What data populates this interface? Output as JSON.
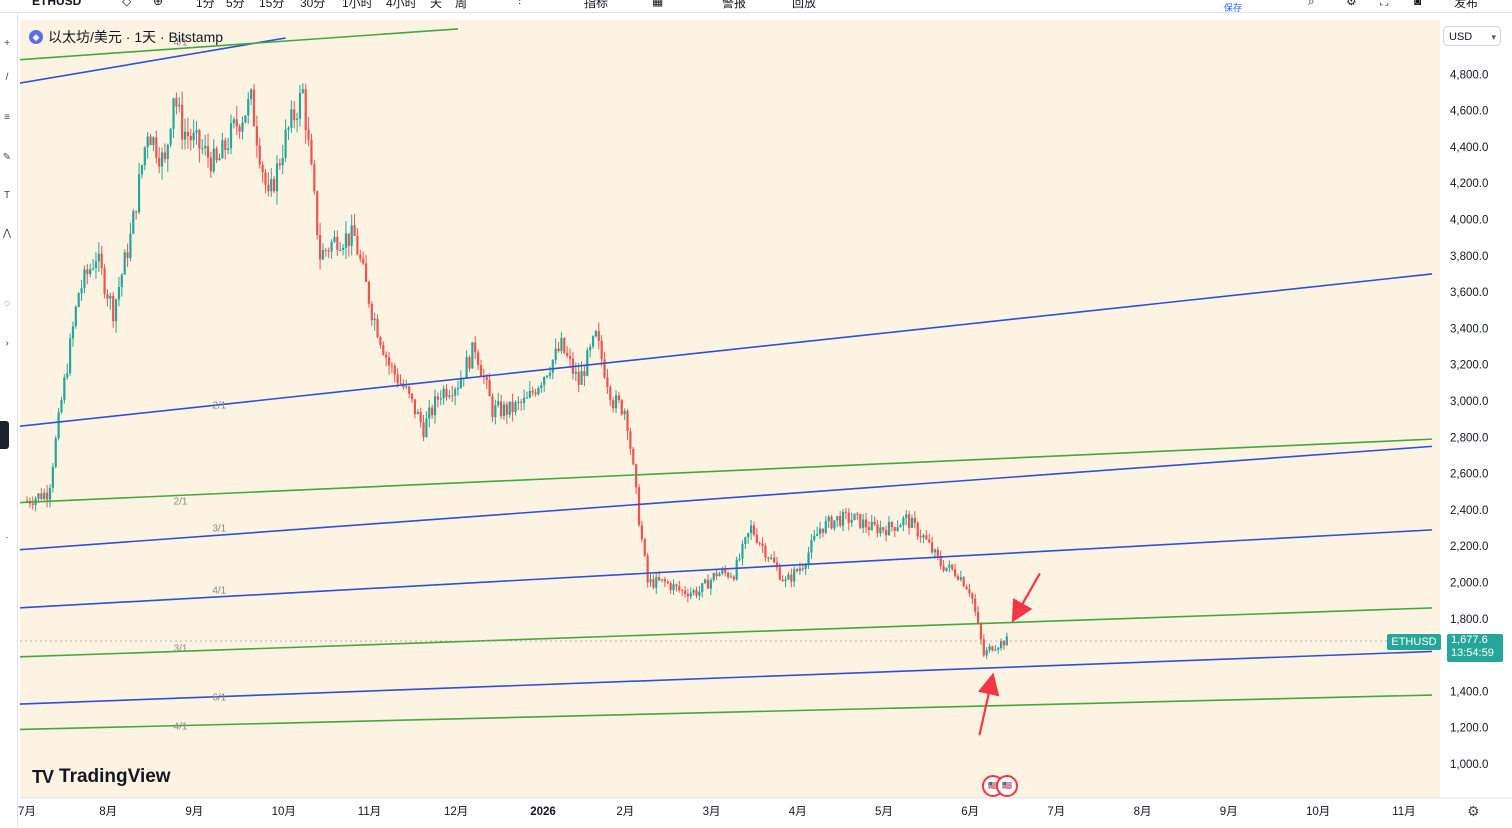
{
  "toolbar": {
    "symbol": "ETHUSD",
    "intervals": [
      "1分",
      "5分",
      "15分",
      "30分",
      "1小时",
      "4小时",
      "天",
      "周"
    ],
    "indicators": "指标",
    "alert": "警报",
    "replay": "回放",
    "save_sub": "保存",
    "publish": "发布"
  },
  "legend": {
    "title": "以太坊/美元 · 1天 · Bitstamp",
    "coin_icon": "ethereum-icon"
  },
  "currency_selector": {
    "label": "USD",
    "icon": "chevron-down-icon"
  },
  "price_tag": {
    "symbol": "ETHUSD",
    "price": "1,677.6",
    "countdown": "13:54:59"
  },
  "brand": {
    "name": "TradingView",
    "logo": "TV"
  },
  "events_icon": "🇺🇸",
  "colors": {
    "background": "#fdf3e3",
    "up": "#26a69a",
    "down": "#ef5350",
    "blue_line": "#2e4fd8",
    "green_line": "#43a83f",
    "arrow": "#f23645",
    "label": "#8a8a8a"
  },
  "chart_data": {
    "type": "candlestick",
    "title": "以太坊/美元 · 1天 · Bitstamp",
    "ylim": [
      850,
      5050
    ],
    "y_ticks": [
      1000,
      1200,
      1400,
      1600,
      1800,
      2000,
      2200,
      2400,
      2600,
      2800,
      3000,
      3200,
      3400,
      3600,
      3800,
      4000,
      4200,
      4400,
      4600,
      4800
    ],
    "y_tick_labels": [
      "1,000.0",
      "1,200.0",
      "1,400.0",
      "1,600.0",
      "1,800.0",
      "2,000.0",
      "2,200.0",
      "2,400.0",
      "2,600.0",
      "2,800.0",
      "3,000.0",
      "3,200.0",
      "3,400.0",
      "3,600.0",
      "3,800.0",
      "4,000.0",
      "4,200.0",
      "4,400.0",
      "4,600.0",
      "4,800.0"
    ],
    "x_labels": [
      {
        "label": "7月",
        "t": 0.0
      },
      {
        "label": "8月",
        "t": 1.0
      },
      {
        "label": "9月",
        "t": 2.0
      },
      {
        "label": "10月",
        "t": 3.0
      },
      {
        "label": "11月",
        "t": 4.0
      },
      {
        "label": "12月",
        "t": 5.0
      },
      {
        "label": "2026",
        "t": 6.0,
        "bold": true
      },
      {
        "label": "2月",
        "t": 7.0
      },
      {
        "label": "3月",
        "t": 8.0
      },
      {
        "label": "4月",
        "t": 9.0
      },
      {
        "label": "5月",
        "t": 10.0
      },
      {
        "label": "6月",
        "t": 11.0
      },
      {
        "label": "7月",
        "t": 12.0
      },
      {
        "label": "8月",
        "t": 13.0
      },
      {
        "label": "9月",
        "t": 14.0
      },
      {
        "label": "10月",
        "t": 15.0
      },
      {
        "label": "11月",
        "t": 16.0
      }
    ],
    "price_path": [
      {
        "t": 0.0,
        "p": 2450
      },
      {
        "t": 0.25,
        "p": 2500
      },
      {
        "t": 0.4,
        "p": 3000
      },
      {
        "t": 0.6,
        "p": 3600
      },
      {
        "t": 0.8,
        "p": 3800
      },
      {
        "t": 1.0,
        "p": 3500
      },
      {
        "t": 1.2,
        "p": 3900
      },
      {
        "t": 1.4,
        "p": 4500
      },
      {
        "t": 1.6,
        "p": 4300
      },
      {
        "t": 1.7,
        "p": 4700
      },
      {
        "t": 1.8,
        "p": 4500
      },
      {
        "t": 2.0,
        "p": 4400
      },
      {
        "t": 2.2,
        "p": 4300
      },
      {
        "t": 2.4,
        "p": 4500
      },
      {
        "t": 2.6,
        "p": 4650
      },
      {
        "t": 2.8,
        "p": 4100
      },
      {
        "t": 3.0,
        "p": 4450
      },
      {
        "t": 3.2,
        "p": 4700
      },
      {
        "t": 3.4,
        "p": 3800
      },
      {
        "t": 3.6,
        "p": 3900
      },
      {
        "t": 3.8,
        "p": 3900
      },
      {
        "t": 4.0,
        "p": 3500
      },
      {
        "t": 4.2,
        "p": 3200
      },
      {
        "t": 4.4,
        "p": 3050
      },
      {
        "t": 4.6,
        "p": 2850
      },
      {
        "t": 4.8,
        "p": 3050
      },
      {
        "t": 5.0,
        "p": 3100
      },
      {
        "t": 5.2,
        "p": 3300
      },
      {
        "t": 5.4,
        "p": 2950
      },
      {
        "t": 5.6,
        "p": 2950
      },
      {
        "t": 5.8,
        "p": 3000
      },
      {
        "t": 6.0,
        "p": 3150
      },
      {
        "t": 6.2,
        "p": 3300
      },
      {
        "t": 6.4,
        "p": 3100
      },
      {
        "t": 6.6,
        "p": 3350
      },
      {
        "t": 6.8,
        "p": 3000
      },
      {
        "t": 6.95,
        "p": 2950
      },
      {
        "t": 7.1,
        "p": 2350
      },
      {
        "t": 7.2,
        "p": 2000
      },
      {
        "t": 7.4,
        "p": 2000
      },
      {
        "t": 7.6,
        "p": 1950
      },
      {
        "t": 7.8,
        "p": 1950
      },
      {
        "t": 8.0,
        "p": 2050
      },
      {
        "t": 8.2,
        "p": 2050
      },
      {
        "t": 8.4,
        "p": 2300
      },
      {
        "t": 8.6,
        "p": 2150
      },
      {
        "t": 8.8,
        "p": 2000
      },
      {
        "t": 9.0,
        "p": 2100
      },
      {
        "t": 9.2,
        "p": 2300
      },
      {
        "t": 9.4,
        "p": 2350
      },
      {
        "t": 9.6,
        "p": 2350
      },
      {
        "t": 9.8,
        "p": 2300
      },
      {
        "t": 10.0,
        "p": 2300
      },
      {
        "t": 10.2,
        "p": 2350
      },
      {
        "t": 10.4,
        "p": 2250
      },
      {
        "t": 10.6,
        "p": 2100
      },
      {
        "t": 10.8,
        "p": 2050
      },
      {
        "t": 10.95,
        "p": 1950
      },
      {
        "t": 11.1,
        "p": 1600
      },
      {
        "t": 11.2,
        "p": 1650
      },
      {
        "t": 11.35,
        "p": 1677.6
      }
    ],
    "last_price": 1677.6,
    "lines": [
      {
        "name": "blue-top",
        "color": "blue",
        "t0": -0.1,
        "p0": 4750,
        "t1": 3.0,
        "p1": 5000
      },
      {
        "name": "green-top",
        "color": "green",
        "t0": -0.1,
        "p0": 4880,
        "t1": 5.0,
        "p1": 5050
      },
      {
        "name": "blue-2-1",
        "color": "blue",
        "t0": -0.1,
        "p0": 2860,
        "t1": 16.3,
        "p1": 3700
      },
      {
        "name": "green-2-1",
        "color": "green",
        "t0": -0.1,
        "p0": 2440,
        "t1": 16.3,
        "p1": 2790
      },
      {
        "name": "blue-mid",
        "color": "blue",
        "t0": -0.1,
        "p0": 2180,
        "t1": 16.3,
        "p1": 2750
      },
      {
        "name": "blue-3-1",
        "color": "blue",
        "t0": -0.1,
        "p0": 1860,
        "t1": 16.3,
        "p1": 2290
      },
      {
        "name": "green-3-1",
        "color": "green",
        "t0": -0.1,
        "p0": 1590,
        "t1": 16.3,
        "p1": 1860
      },
      {
        "name": "blue-6-1",
        "color": "blue",
        "t0": -0.1,
        "p0": 1330,
        "t1": 16.3,
        "p1": 1620
      },
      {
        "name": "green-4-1",
        "color": "green",
        "t0": -0.1,
        "p0": 1190,
        "t1": 16.3,
        "p1": 1380
      }
    ],
    "ratio_labels": [
      {
        "text": "4/1",
        "t": 1.7,
        "p": 4960
      },
      {
        "text": "2/1",
        "t": 2.15,
        "p": 2960
      },
      {
        "text": "2/1",
        "t": 1.7,
        "p": 2430
      },
      {
        "text": "3/1",
        "t": 2.15,
        "p": 2280
      },
      {
        "text": "4/1",
        "t": 2.15,
        "p": 1940
      },
      {
        "text": "3/1",
        "t": 1.7,
        "p": 1620
      },
      {
        "text": "6/1",
        "t": 2.15,
        "p": 1350
      },
      {
        "text": "4/1",
        "t": 1.7,
        "p": 1190
      }
    ],
    "arrows": [
      {
        "from_t": 11.75,
        "from_p": 2050,
        "to_t": 11.45,
        "to_p": 1800
      },
      {
        "from_t": 11.05,
        "from_p": 1160,
        "to_t": 11.2,
        "to_p": 1480
      }
    ]
  }
}
